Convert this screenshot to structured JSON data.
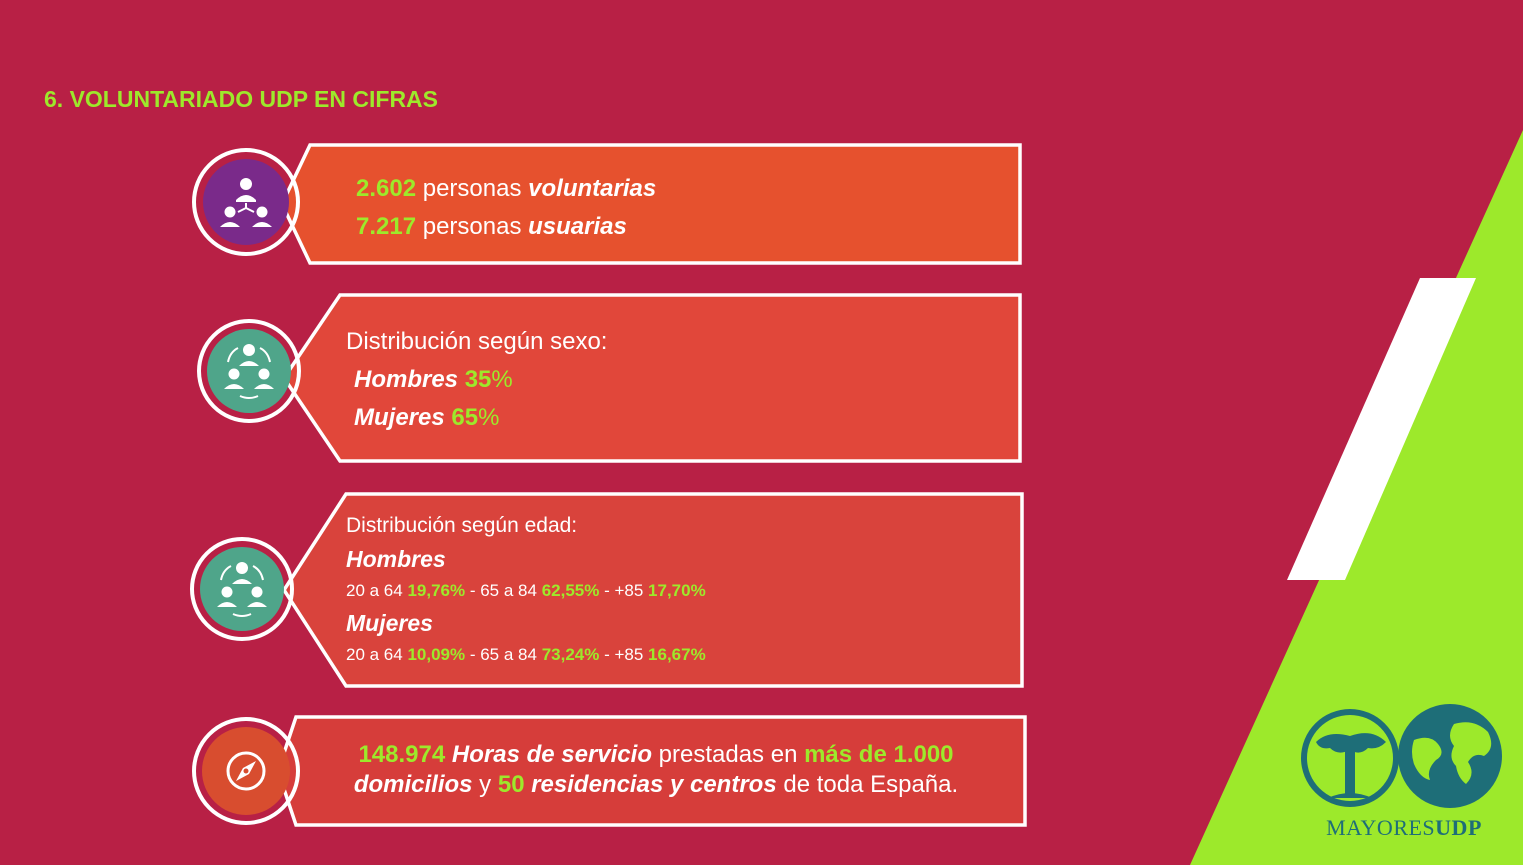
{
  "page": {
    "title": "6. VOLUNTARIADO UDP EN CIFRAS"
  },
  "colors": {
    "background": "#b82045",
    "accent": "#9de92b",
    "card1": "#e6512e",
    "card2": "#e1473a",
    "card3": "#d9433c",
    "card4": "#d63d3a",
    "badge_purple": "#7a2a8a",
    "badge_teal": "#4fa58a",
    "badge_orange": "#d84d2f"
  },
  "card1": {
    "icon": "network-people-icon",
    "line1_num": "2.602",
    "line1_text": " personas ",
    "line1_em": "voluntarias",
    "line2_num": "7.217",
    "line2_text": " personas ",
    "line2_em": "usuarias"
  },
  "card2": {
    "icon": "people-cycle-icon",
    "heading": "Distribución según sexo:",
    "men_label": "Hombres",
    "men_num": "35",
    "men_pct": "%",
    "women_label": "Mujeres",
    "women_num": "65",
    "women_pct": "%"
  },
  "card3": {
    "icon": "people-cycle-icon",
    "heading": "Distribución según edad:",
    "men_label": "Hombres",
    "men_a": "20 a 64 ",
    "men_a_val": "19,76%",
    "men_b": " - 65 a 84 ",
    "men_b_val": "62,55%",
    "men_c": " - +85 ",
    "men_c_val": "17,70%",
    "women_label": "Mujeres",
    "women_a": "20 a 64 ",
    "women_a_val": "10,09%",
    "women_b": " - 65 a 84 ",
    "women_b_val": "73,24%",
    "women_c": " - +85 ",
    "women_c_val": "16,67%"
  },
  "card4": {
    "icon": "compass-icon",
    "hours": "148.974",
    "hours_label": " Horas de servicio",
    "t1": " prestadas en ",
    "homes": "más de 1.000",
    "homes_label": "domicilios",
    "t2": " y ",
    "res": "50",
    "res_label": " residencias y centros",
    "t3": " de toda España."
  },
  "logo": {
    "text_a": "MAYORES",
    "text_b": "UDP"
  }
}
